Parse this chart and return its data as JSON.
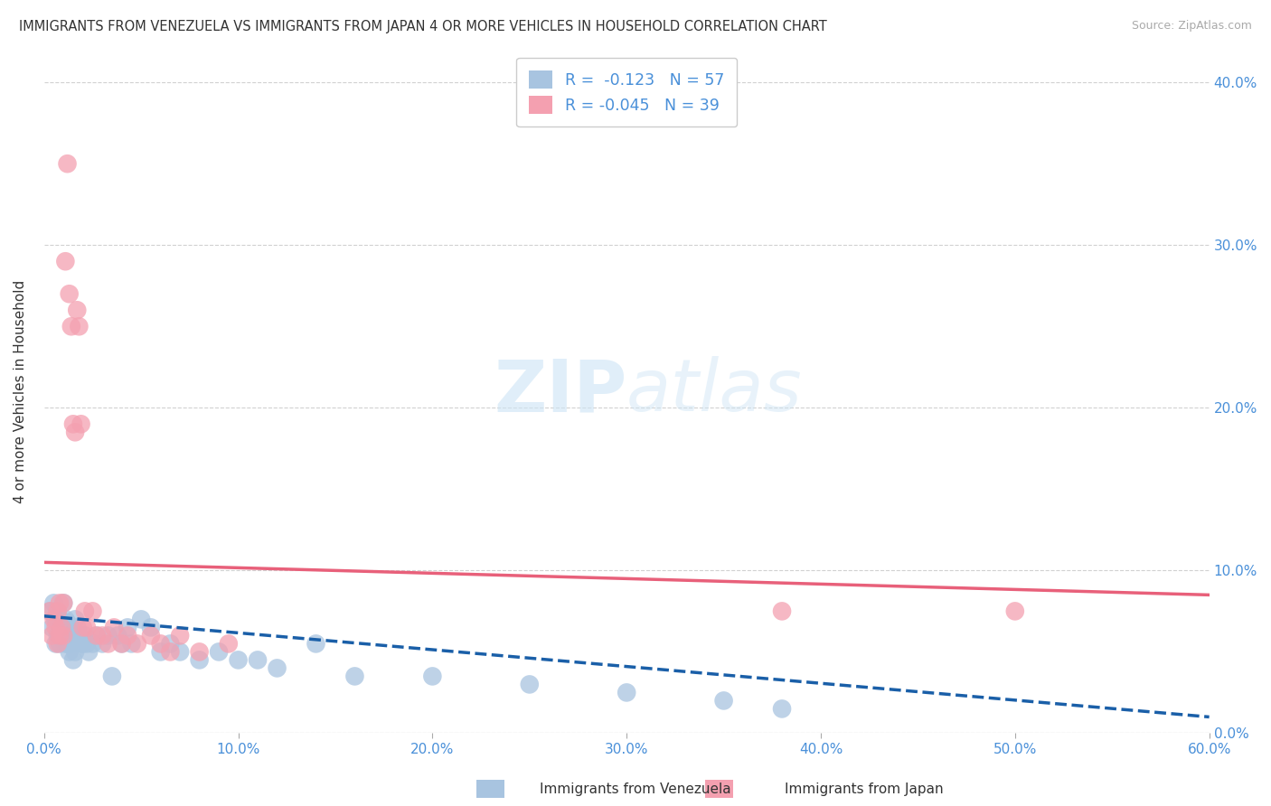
{
  "title": "IMMIGRANTS FROM VENEZUELA VS IMMIGRANTS FROM JAPAN 4 OR MORE VEHICLES IN HOUSEHOLD CORRELATION CHART",
  "source": "Source: ZipAtlas.com",
  "ylabel": "4 or more Vehicles in Household",
  "xlim": [
    0.0,
    0.6
  ],
  "ylim": [
    0.0,
    0.42
  ],
  "xtick_labels": [
    "0.0%",
    "10.0%",
    "20.0%",
    "30.0%",
    "40.0%",
    "50.0%",
    "60.0%"
  ],
  "xtick_values": [
    0.0,
    0.1,
    0.2,
    0.3,
    0.4,
    0.5,
    0.6
  ],
  "ytick_labels_right": [
    "0.0%",
    "10.0%",
    "20.0%",
    "30.0%",
    "40.0%"
  ],
  "ytick_values": [
    0.0,
    0.1,
    0.2,
    0.3,
    0.4
  ],
  "legend1_r": "-0.123",
  "legend1_n": "57",
  "legend2_r": "-0.045",
  "legend2_n": "39",
  "color_venezuela": "#a8c4e0",
  "color_japan": "#f4a0b0",
  "line_color_venezuela": "#1a5fa8",
  "line_color_japan": "#e8607a",
  "watermark_zip": "ZIP",
  "watermark_atlas": "atlas",
  "background_color": "#ffffff",
  "grid_color": "#cccccc",
  "venezuela_x": [
    0.003,
    0.004,
    0.005,
    0.006,
    0.006,
    0.007,
    0.007,
    0.008,
    0.008,
    0.009,
    0.01,
    0.01,
    0.011,
    0.011,
    0.012,
    0.012,
    0.013,
    0.013,
    0.014,
    0.014,
    0.015,
    0.015,
    0.016,
    0.016,
    0.017,
    0.018,
    0.019,
    0.02,
    0.021,
    0.022,
    0.023,
    0.025,
    0.027,
    0.03,
    0.033,
    0.035,
    0.038,
    0.04,
    0.043,
    0.045,
    0.05,
    0.055,
    0.06,
    0.065,
    0.07,
    0.08,
    0.09,
    0.1,
    0.11,
    0.12,
    0.14,
    0.16,
    0.2,
    0.25,
    0.3,
    0.35,
    0.38
  ],
  "venezuela_y": [
    0.075,
    0.065,
    0.08,
    0.07,
    0.055,
    0.075,
    0.06,
    0.07,
    0.055,
    0.065,
    0.08,
    0.06,
    0.07,
    0.055,
    0.068,
    0.055,
    0.065,
    0.05,
    0.065,
    0.055,
    0.06,
    0.045,
    0.07,
    0.05,
    0.065,
    0.06,
    0.055,
    0.055,
    0.06,
    0.055,
    0.05,
    0.055,
    0.06,
    0.055,
    0.06,
    0.035,
    0.06,
    0.055,
    0.065,
    0.055,
    0.07,
    0.065,
    0.05,
    0.055,
    0.05,
    0.045,
    0.05,
    0.045,
    0.045,
    0.04,
    0.055,
    0.035,
    0.035,
    0.03,
    0.025,
    0.02,
    0.015
  ],
  "japan_x": [
    0.003,
    0.004,
    0.005,
    0.006,
    0.007,
    0.007,
    0.008,
    0.008,
    0.009,
    0.01,
    0.01,
    0.011,
    0.012,
    0.013,
    0.014,
    0.015,
    0.016,
    0.017,
    0.018,
    0.019,
    0.02,
    0.021,
    0.022,
    0.025,
    0.027,
    0.03,
    0.033,
    0.036,
    0.04,
    0.043,
    0.048,
    0.055,
    0.06,
    0.065,
    0.07,
    0.08,
    0.095,
    0.38,
    0.5
  ],
  "japan_y": [
    0.075,
    0.06,
    0.07,
    0.065,
    0.075,
    0.055,
    0.08,
    0.06,
    0.065,
    0.08,
    0.06,
    0.29,
    0.35,
    0.27,
    0.25,
    0.19,
    0.185,
    0.26,
    0.25,
    0.19,
    0.065,
    0.075,
    0.065,
    0.075,
    0.06,
    0.06,
    0.055,
    0.065,
    0.055,
    0.06,
    0.055,
    0.06,
    0.055,
    0.05,
    0.06,
    0.05,
    0.055,
    0.075,
    0.075
  ],
  "ven_line_x0": 0.0,
  "ven_line_y0": 0.072,
  "ven_line_x1": 0.6,
  "ven_line_y1": 0.01,
  "jpn_line_x0": 0.0,
  "jpn_line_y0": 0.105,
  "jpn_line_x1": 0.6,
  "jpn_line_y1": 0.085
}
